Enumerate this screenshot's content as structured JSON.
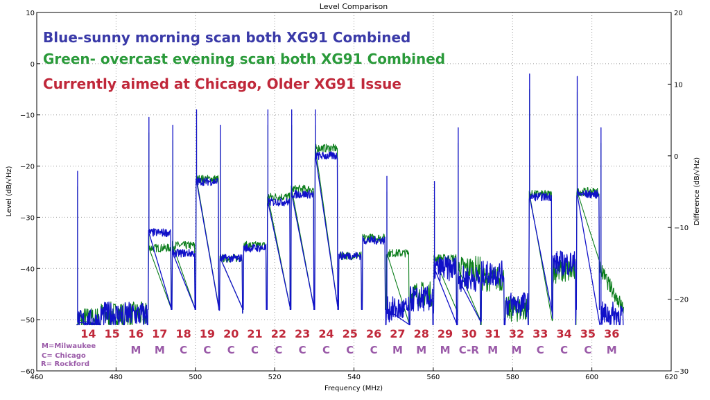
{
  "chart_data": {
    "type": "line",
    "title": "Level Comparison",
    "xlabel": "Frequency (MHz)",
    "ylabel": "Level (dB/√Hz)",
    "y2label": "Difference (dB/√Hz)",
    "xlim": [
      460,
      620
    ],
    "ylim": [
      -60,
      10
    ],
    "y2lim": [
      -30,
      20
    ],
    "xticks": [
      460,
      480,
      500,
      520,
      540,
      560,
      580,
      600,
      620
    ],
    "yticks": [
      -60,
      -50,
      -40,
      -30,
      -20,
      -10,
      0,
      10
    ],
    "y2ticks": [
      -30,
      -20,
      -10,
      0,
      10,
      20
    ],
    "grid": true,
    "colors": {
      "blue": "#1010c8",
      "green": "#0a7d1a",
      "annot_red": "#c0283a",
      "annot_blue": "#3a3aa8",
      "annot_green": "#2a9a3a",
      "annot_purple": "#9a5aa8"
    },
    "channel_width_mhz": 6,
    "channels": [
      {
        "num": "14",
        "station": "",
        "start": 470,
        "blue": -50.5,
        "green": -50
      },
      {
        "num": "15",
        "station": "",
        "start": 476,
        "blue": -49,
        "green": -49
      },
      {
        "num": "16",
        "station": "M",
        "start": 482,
        "blue": -49,
        "green": -49
      },
      {
        "num": "17",
        "station": "M",
        "start": 488,
        "blue": -33,
        "green": -36
      },
      {
        "num": "18",
        "station": "C",
        "start": 494,
        "blue": -37,
        "green": -35.5
      },
      {
        "num": "19",
        "station": "C",
        "start": 500,
        "blue": -23,
        "green": -22.5
      },
      {
        "num": "20",
        "station": "C",
        "start": 506,
        "blue": -38,
        "green": -38
      },
      {
        "num": "21",
        "station": "C",
        "start": 512,
        "blue": -36,
        "green": -35.5
      },
      {
        "num": "22",
        "station": "C",
        "start": 518,
        "blue": -27,
        "green": -26
      },
      {
        "num": "23",
        "station": "C",
        "start": 524,
        "blue": -25.5,
        "green": -24.5
      },
      {
        "num": "24",
        "station": "C",
        "start": 530,
        "blue": -18,
        "green": -16.5
      },
      {
        "num": "25",
        "station": "C",
        "start": 536,
        "blue": -37.5,
        "green": -37.5
      },
      {
        "num": "26",
        "station": "C",
        "start": 542,
        "blue": -34.5,
        "green": -34
      },
      {
        "num": "27",
        "station": "M",
        "start": 548,
        "blue": -48,
        "green": -37
      },
      {
        "num": "28",
        "station": "M",
        "start": 554,
        "blue": -46,
        "green": -45
      },
      {
        "num": "29",
        "station": "M",
        "start": 560,
        "blue": -40,
        "green": -38
      },
      {
        "num": "30",
        "station": "C-R",
        "start": 566,
        "blue": -42,
        "green": -40
      },
      {
        "num": "31",
        "station": "M",
        "start": 572,
        "blue": -41,
        "green": -42
      },
      {
        "num": "32",
        "station": "M",
        "start": 578,
        "blue": -47,
        "green": -48
      },
      {
        "num": "33",
        "station": "C",
        "start": 584,
        "blue": -26,
        "green": -25.5
      },
      {
        "num": "34",
        "station": "C",
        "start": 590,
        "blue": -39,
        "green": -40.5
      },
      {
        "num": "35",
        "station": "C",
        "start": 596,
        "blue": -25.5,
        "green": -25
      },
      {
        "num": "36",
        "station": "M",
        "start": 602,
        "blue": -49,
        "green": -43
      }
    ],
    "pilot_spikes": [
      {
        "freq": 470.3,
        "level": -24
      },
      {
        "freq": 488.3,
        "level": -13.5
      },
      {
        "freq": 494.3,
        "level": -15
      },
      {
        "freq": 500.3,
        "level": -12
      },
      {
        "freq": 506.3,
        "level": -15
      },
      {
        "freq": 518.3,
        "level": -12
      },
      {
        "freq": 524.3,
        "level": -12
      },
      {
        "freq": 530.3,
        "level": -12
      },
      {
        "freq": 548.3,
        "level": -25
      },
      {
        "freq": 560.3,
        "level": -26
      },
      {
        "freq": 566.3,
        "level": -15.5
      },
      {
        "freq": 584.3,
        "level": -5
      },
      {
        "freq": 596.3,
        "level": -5.5
      },
      {
        "freq": 602.3,
        "level": -15.5
      }
    ],
    "annotations": {
      "line1": "Blue-sunny morning scan both XG91 Combined",
      "line2": "Green- overcast evening scan both XG91 Combined",
      "line3": "Currently aimed at Chicago, Older XG91 Issue",
      "key": [
        "M=Milwaukee",
        "C= Chicago",
        "R= Rockford"
      ]
    }
  }
}
